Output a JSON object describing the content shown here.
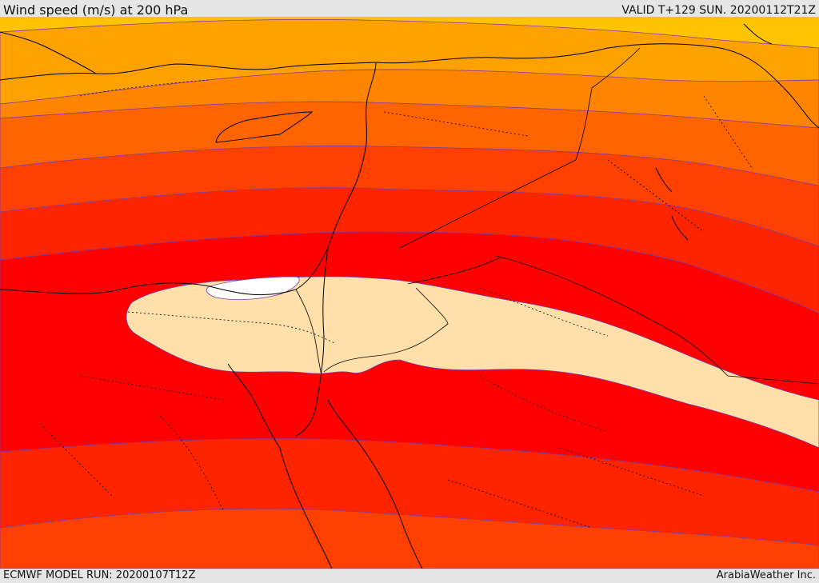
{
  "header": {
    "title": "Wind speed (m/s) at 200 hPa",
    "valid": "VALID T+129 SUN. 20200112T21Z"
  },
  "footer": {
    "model_run": "ECMWF MODEL RUN: 20200107T12Z",
    "credit": "ArabiaWeather Inc."
  },
  "colors": {
    "background": "#e6e6e6",
    "band_1": "#ffc400",
    "band_2": "#ffa200",
    "band_3": "#ff8400",
    "band_4": "#ff6400",
    "band_5": "#ff4000",
    "band_6": "#ff2400",
    "band_7": "#ff0000",
    "jet_core": "#ffdfaa",
    "jet_max": "#ffffff",
    "contour_line": "#7a3aa8",
    "coastline": "#000000"
  }
}
